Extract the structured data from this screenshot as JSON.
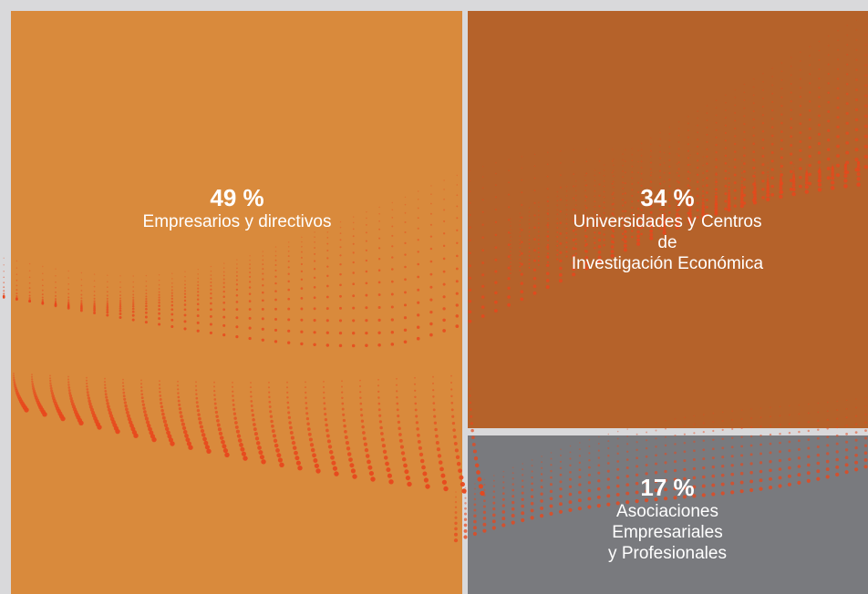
{
  "chart_data": {
    "type": "treemap",
    "categories": [
      "Empresarios y directivos",
      "Universidades y Centros de\nInvestigación Económica",
      "Asociaciones Empresariales\ny Profesionales"
    ],
    "values": [
      49,
      34,
      17
    ],
    "value_labels": [
      "49 %",
      "34 %",
      "17 %"
    ],
    "colors": [
      "#d98a3c",
      "#b5622a",
      "#797a7e"
    ]
  },
  "colors": {
    "background": "#d9d9db",
    "dots": "#e8471c",
    "text": "#ffffff"
  }
}
